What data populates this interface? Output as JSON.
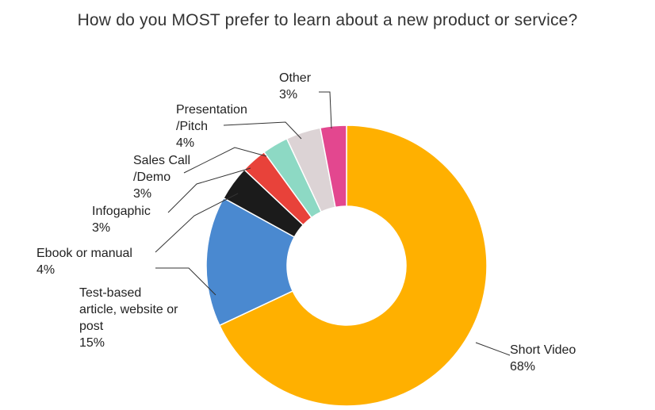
{
  "chart_data": {
    "type": "pie",
    "title": "How do you MOST prefer to learn about a new product or service?",
    "donut": true,
    "slices": [
      {
        "label": [
          "Short Video"
        ],
        "pct_text": "68%",
        "value": 68,
        "color": "#FFB000"
      },
      {
        "label": [
          "Test-based",
          "article, website or",
          "post"
        ],
        "pct_text": "15%",
        "value": 15,
        "color": "#4A89D0"
      },
      {
        "label": [
          "Ebook or manual"
        ],
        "pct_text": "4%",
        "value": 4,
        "color": "#1B1B1B"
      },
      {
        "label": [
          "Infogaphic"
        ],
        "pct_text": "3%",
        "value": 3,
        "color": "#E8423A"
      },
      {
        "label": [
          "Sales Call",
          "/Demo"
        ],
        "pct_text": "3%",
        "value": 3,
        "color": "#8DD9C4"
      },
      {
        "label": [
          "Presentation",
          "/Pitch"
        ],
        "pct_text": "4%",
        "value": 4,
        "color": "#DCD3D5"
      },
      {
        "label": [
          "Other"
        ],
        "pct_text": "3%",
        "value": 3,
        "color": "#E3478F"
      }
    ]
  }
}
